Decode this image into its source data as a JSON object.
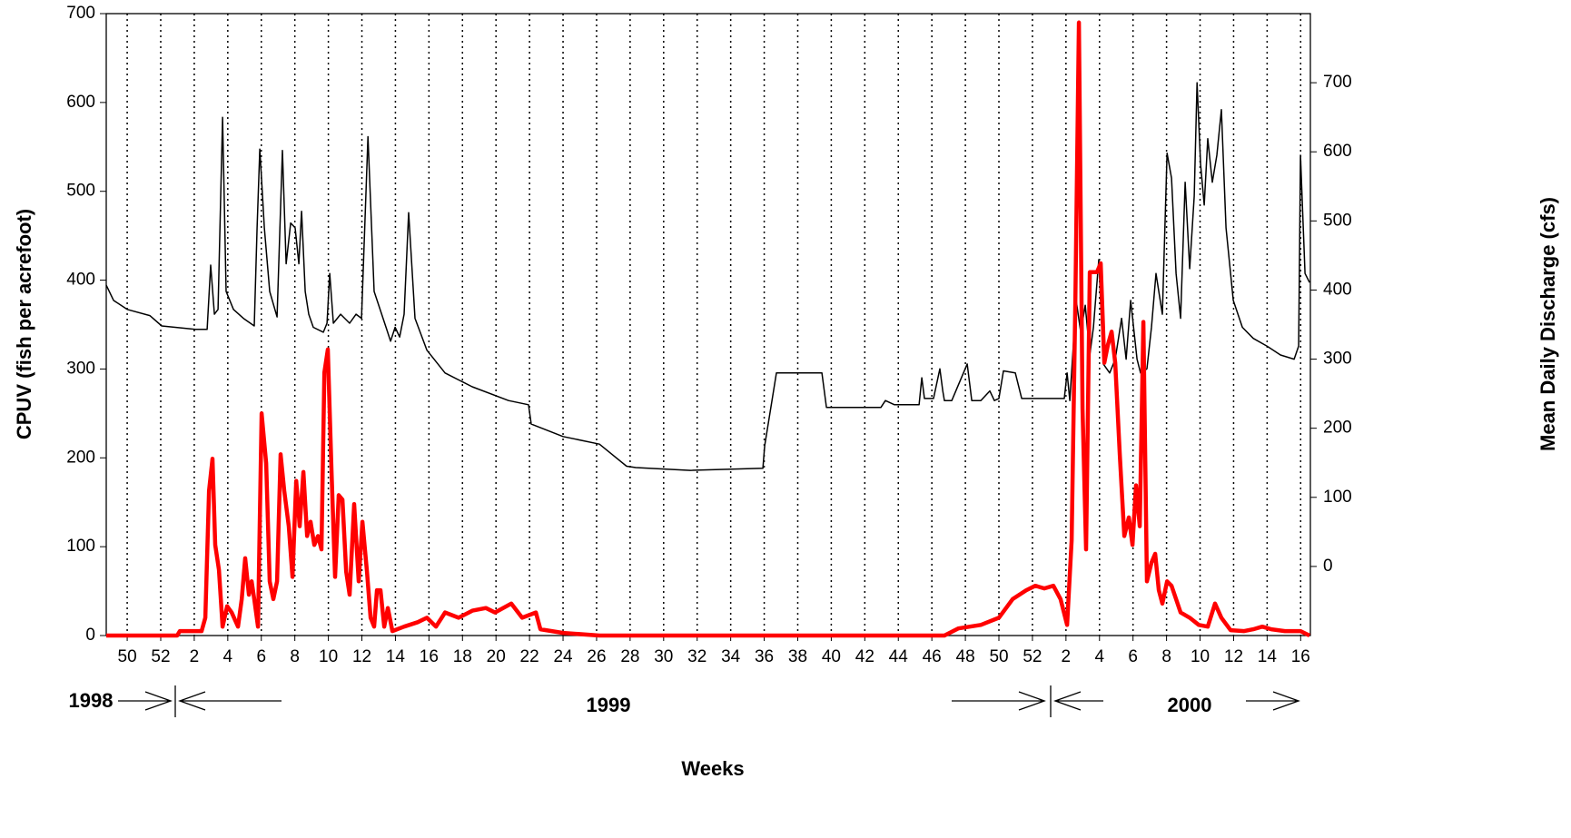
{
  "chart_data": {
    "type": "line",
    "y_label": "CPUV (fish per acrefoot)",
    "y2_label": "Mean Daily Discharge (cfs)",
    "x_label": "Weeks",
    "annotations": [
      "1998",
      "1999",
      "2000"
    ],
    "xlim": [
      -1.25,
      70.58
    ],
    "ylim": [
      0,
      700
    ],
    "y2lim": [
      -100,
      800
    ],
    "yticks": [
      0,
      100,
      200,
      300,
      400,
      500,
      600,
      700
    ],
    "y2ticks": [
      0,
      100,
      200,
      300,
      400,
      500,
      600,
      700
    ],
    "xticks": [
      {
        "value": 0,
        "label": "50"
      },
      {
        "value": 2,
        "label": "52"
      },
      {
        "value": 4,
        "label": "2"
      },
      {
        "value": 6,
        "label": "4"
      },
      {
        "value": 8,
        "label": "6"
      },
      {
        "value": 10,
        "label": "8"
      },
      {
        "value": 12,
        "label": "10"
      },
      {
        "value": 14,
        "label": "12"
      },
      {
        "value": 16,
        "label": "14"
      },
      {
        "value": 18,
        "label": "16"
      },
      {
        "value": 20,
        "label": "18"
      },
      {
        "value": 22,
        "label": "20"
      },
      {
        "value": 24,
        "label": "22"
      },
      {
        "value": 26,
        "label": "24"
      },
      {
        "value": 28,
        "label": "26"
      },
      {
        "value": 30,
        "label": "28"
      },
      {
        "value": 32,
        "label": "30"
      },
      {
        "value": 34,
        "label": "32"
      },
      {
        "value": 36,
        "label": "34"
      },
      {
        "value": 38,
        "label": "36"
      },
      {
        "value": 40,
        "label": "38"
      },
      {
        "value": 42,
        "label": "40"
      },
      {
        "value": 44,
        "label": "42"
      },
      {
        "value": 46,
        "label": "44"
      },
      {
        "value": 48,
        "label": "46"
      },
      {
        "value": 50,
        "label": "48"
      },
      {
        "value": 52,
        "label": "50"
      },
      {
        "value": 54,
        "label": "52"
      },
      {
        "value": 56,
        "label": "2"
      },
      {
        "value": 58,
        "label": "4"
      },
      {
        "value": 60,
        "label": "6"
      },
      {
        "value": 62,
        "label": "8"
      },
      {
        "value": 64,
        "label": "10"
      },
      {
        "value": 66,
        "label": "12"
      },
      {
        "value": 68,
        "label": "14"
      },
      {
        "value": 70,
        "label": "16"
      }
    ],
    "grid": true,
    "series": [
      {
        "color": "#000000",
        "axis": "y2",
        "width": 1.5,
        "x": [
          -1.25,
          -0.81,
          0,
          1.35,
          2.06,
          4.06,
          4.77,
          4.98,
          5.2,
          5.42,
          5.69,
          5.9,
          6.34,
          6.93,
          7.58,
          7.75,
          7.91,
          8.18,
          8.5,
          8.94,
          9.26,
          9.48,
          9.75,
          10.02,
          10.24,
          10.4,
          10.62,
          10.83,
          11.1,
          11.7,
          11.92,
          12.08,
          12.3,
          12.73,
          13.27,
          13.65,
          13.98,
          14.36,
          14.73,
          15.44,
          15.71,
          15.98,
          16.25,
          16.52,
          16.79,
          17.17,
          17.88,
          18.96,
          20.58,
          22.75,
          23.94,
          24.1,
          26,
          28.17,
          29.79,
          30.34,
          33.59,
          37.92,
          38.03,
          38.46,
          38.73,
          41.44,
          41.71,
          43.34,
          44.96,
          45.23,
          45.77,
          47.24,
          47.4,
          47.56,
          48.1,
          48.48,
          48.65,
          48.75,
          49.19,
          50.11,
          50.38,
          50.92,
          51.46,
          51.73,
          52,
          52.27,
          52.98,
          53.36,
          55.9,
          56.07,
          56.23,
          56.61,
          56.88,
          57.15,
          57.42,
          57.64,
          57.96,
          58.23,
          58.61,
          58.94,
          59.32,
          59.59,
          59.86,
          60.24,
          60.45,
          60.83,
          61.1,
          61.37,
          61.75,
          62.03,
          62.3,
          62.57,
          62.84,
          63.11,
          63.38,
          63.65,
          63.82,
          64.03,
          64.25,
          64.46,
          64.73,
          65,
          65.27,
          65.55,
          65.98,
          66.52,
          67.17,
          67.98,
          68.8,
          69.61,
          69.88,
          69.99,
          70.26,
          70.53
        ],
        "values": [
          407,
          385,
          372,
          363,
          348,
          343,
          343,
          436,
          365,
          372,
          650,
          398,
          372,
          359,
          348,
          490,
          604,
          490,
          398,
          361,
          602,
          438,
          497,
          490,
          438,
          514,
          398,
          365,
          346,
          339,
          352,
          424,
          352,
          365,
          352,
          365,
          359,
          622,
          398,
          346,
          326,
          346,
          332,
          365,
          512,
          359,
          313,
          280,
          260,
          240,
          234,
          206,
          188,
          177,
          145,
          143,
          139,
          142,
          175,
          240,
          280,
          280,
          230,
          230,
          230,
          240,
          234,
          234,
          273,
          243,
          243,
          286,
          254,
          240,
          240,
          293,
          240,
          240,
          254,
          240,
          243,
          283,
          280,
          243,
          243,
          280,
          240,
          385,
          339,
          378,
          306,
          346,
          444,
          293,
          280,
          300,
          359,
          300,
          385,
          300,
          280,
          286,
          346,
          424,
          365,
          598,
          562,
          424,
          359,
          556,
          431,
          536,
          700,
          582,
          523,
          619,
          556,
          595,
          661,
          490,
          385,
          346,
          330,
          319,
          306,
          300,
          319,
          595,
          424,
          411
        ]
      },
      {
        "color": "#ff0000",
        "axis": "y",
        "width": 4.5,
        "x": [
          -1.25,
          2.98,
          3.14,
          4.44,
          4.66,
          4.88,
          5.09,
          5.25,
          5.47,
          5.69,
          5.96,
          6.23,
          6.61,
          6.83,
          7.04,
          7.26,
          7.42,
          7.58,
          7.8,
          8.02,
          8.29,
          8.5,
          8.72,
          8.94,
          9.15,
          9.37,
          9.64,
          9.86,
          10.08,
          10.29,
          10.51,
          10.73,
          10.94,
          11.16,
          11.38,
          11.59,
          11.76,
          11.97,
          12.19,
          12.4,
          12.62,
          12.84,
          13.06,
          13.27,
          13.54,
          13.81,
          14.03,
          14.3,
          14.52,
          14.73,
          14.9,
          15.11,
          15.33,
          15.55,
          15.82,
          16.52,
          17.33,
          17.88,
          18.42,
          18.96,
          19.77,
          20.59,
          21.4,
          21.94,
          22.91,
          23.56,
          24.38,
          24.65,
          26,
          28.17,
          48.75,
          49.57,
          50.92,
          52,
          52.82,
          53.63,
          54.17,
          54.71,
          55.25,
          55.68,
          56.07,
          56.34,
          56.56,
          56.77,
          56.99,
          57.2,
          57.42,
          57.64,
          57.85,
          58.07,
          58.29,
          58.5,
          58.72,
          58.94,
          59.21,
          59.48,
          59.75,
          59.97,
          60.18,
          60.4,
          60.62,
          60.83,
          61.1,
          61.32,
          61.54,
          61.75,
          62.03,
          62.3,
          62.84,
          63.38,
          63.92,
          64.46,
          64.89,
          65.27,
          65.82,
          66.63,
          67.17,
          67.71,
          68.25,
          69.06,
          69.99,
          70.53
        ],
        "values": [
          0,
          0,
          5,
          5,
          20,
          163,
          199,
          102,
          74,
          10,
          33,
          26,
          10,
          41,
          87,
          46,
          61,
          41,
          10,
          250,
          194,
          61,
          41,
          61,
          204,
          163,
          123,
          66,
          174,
          123,
          184,
          112,
          128,
          102,
          112,
          97,
          296,
          322,
          184,
          66,
          158,
          153,
          72,
          46,
          148,
          61,
          128,
          72,
          20,
          10,
          51,
          51,
          10,
          31,
          5,
          10,
          15,
          20,
          10,
          26,
          20,
          28,
          31,
          26,
          36,
          20,
          26,
          7,
          3,
          0,
          0,
          8,
          12,
          20,
          41,
          51,
          56,
          53,
          56,
          41,
          12,
          107,
          378,
          690,
          255,
          97,
          409,
          409,
          409,
          419,
          307,
          327,
          342,
          307,
          204,
          112,
          133,
          102,
          169,
          123,
          353,
          61,
          82,
          92,
          51,
          36,
          61,
          56,
          26,
          20,
          12,
          10,
          36,
          20,
          6,
          5,
          7,
          10,
          7,
          5,
          5,
          0
        ]
      }
    ]
  }
}
